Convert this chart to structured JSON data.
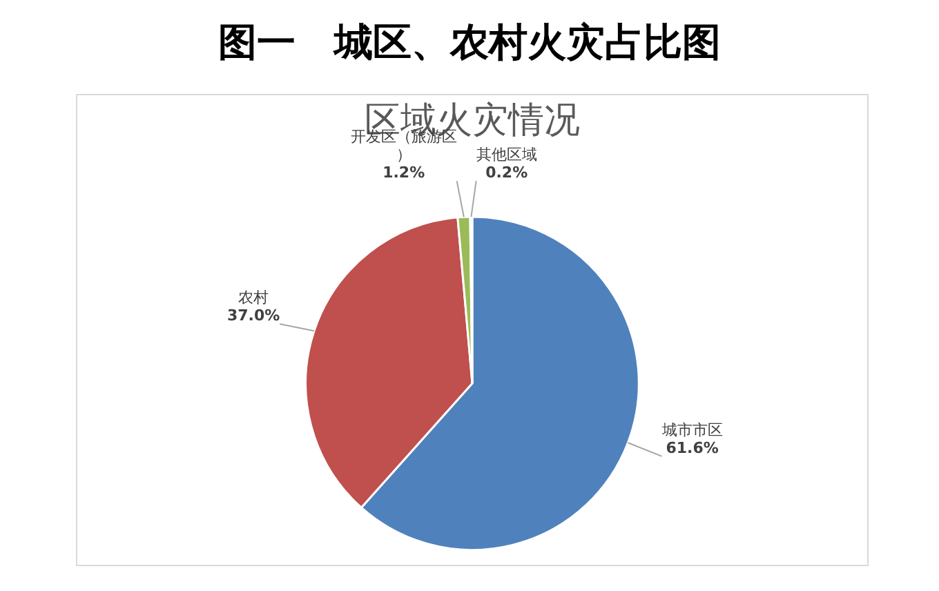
{
  "chart_data": {
    "type": "pie",
    "title": "图一　城区、农村火灾占比图",
    "subtitle": "区域火灾情况",
    "categories": [
      "城市市区",
      "农村",
      "开发区（旅游区）",
      "其他区域"
    ],
    "values": [
      61.6,
      37.0,
      1.2,
      0.2
    ],
    "colors": [
      "#4f81bd",
      "#c0504d",
      "#9bbb59",
      "#8064a2"
    ],
    "value_labels": [
      "61.6%",
      "37.0%",
      "1.2%",
      "0.2%"
    ],
    "legend": false
  }
}
